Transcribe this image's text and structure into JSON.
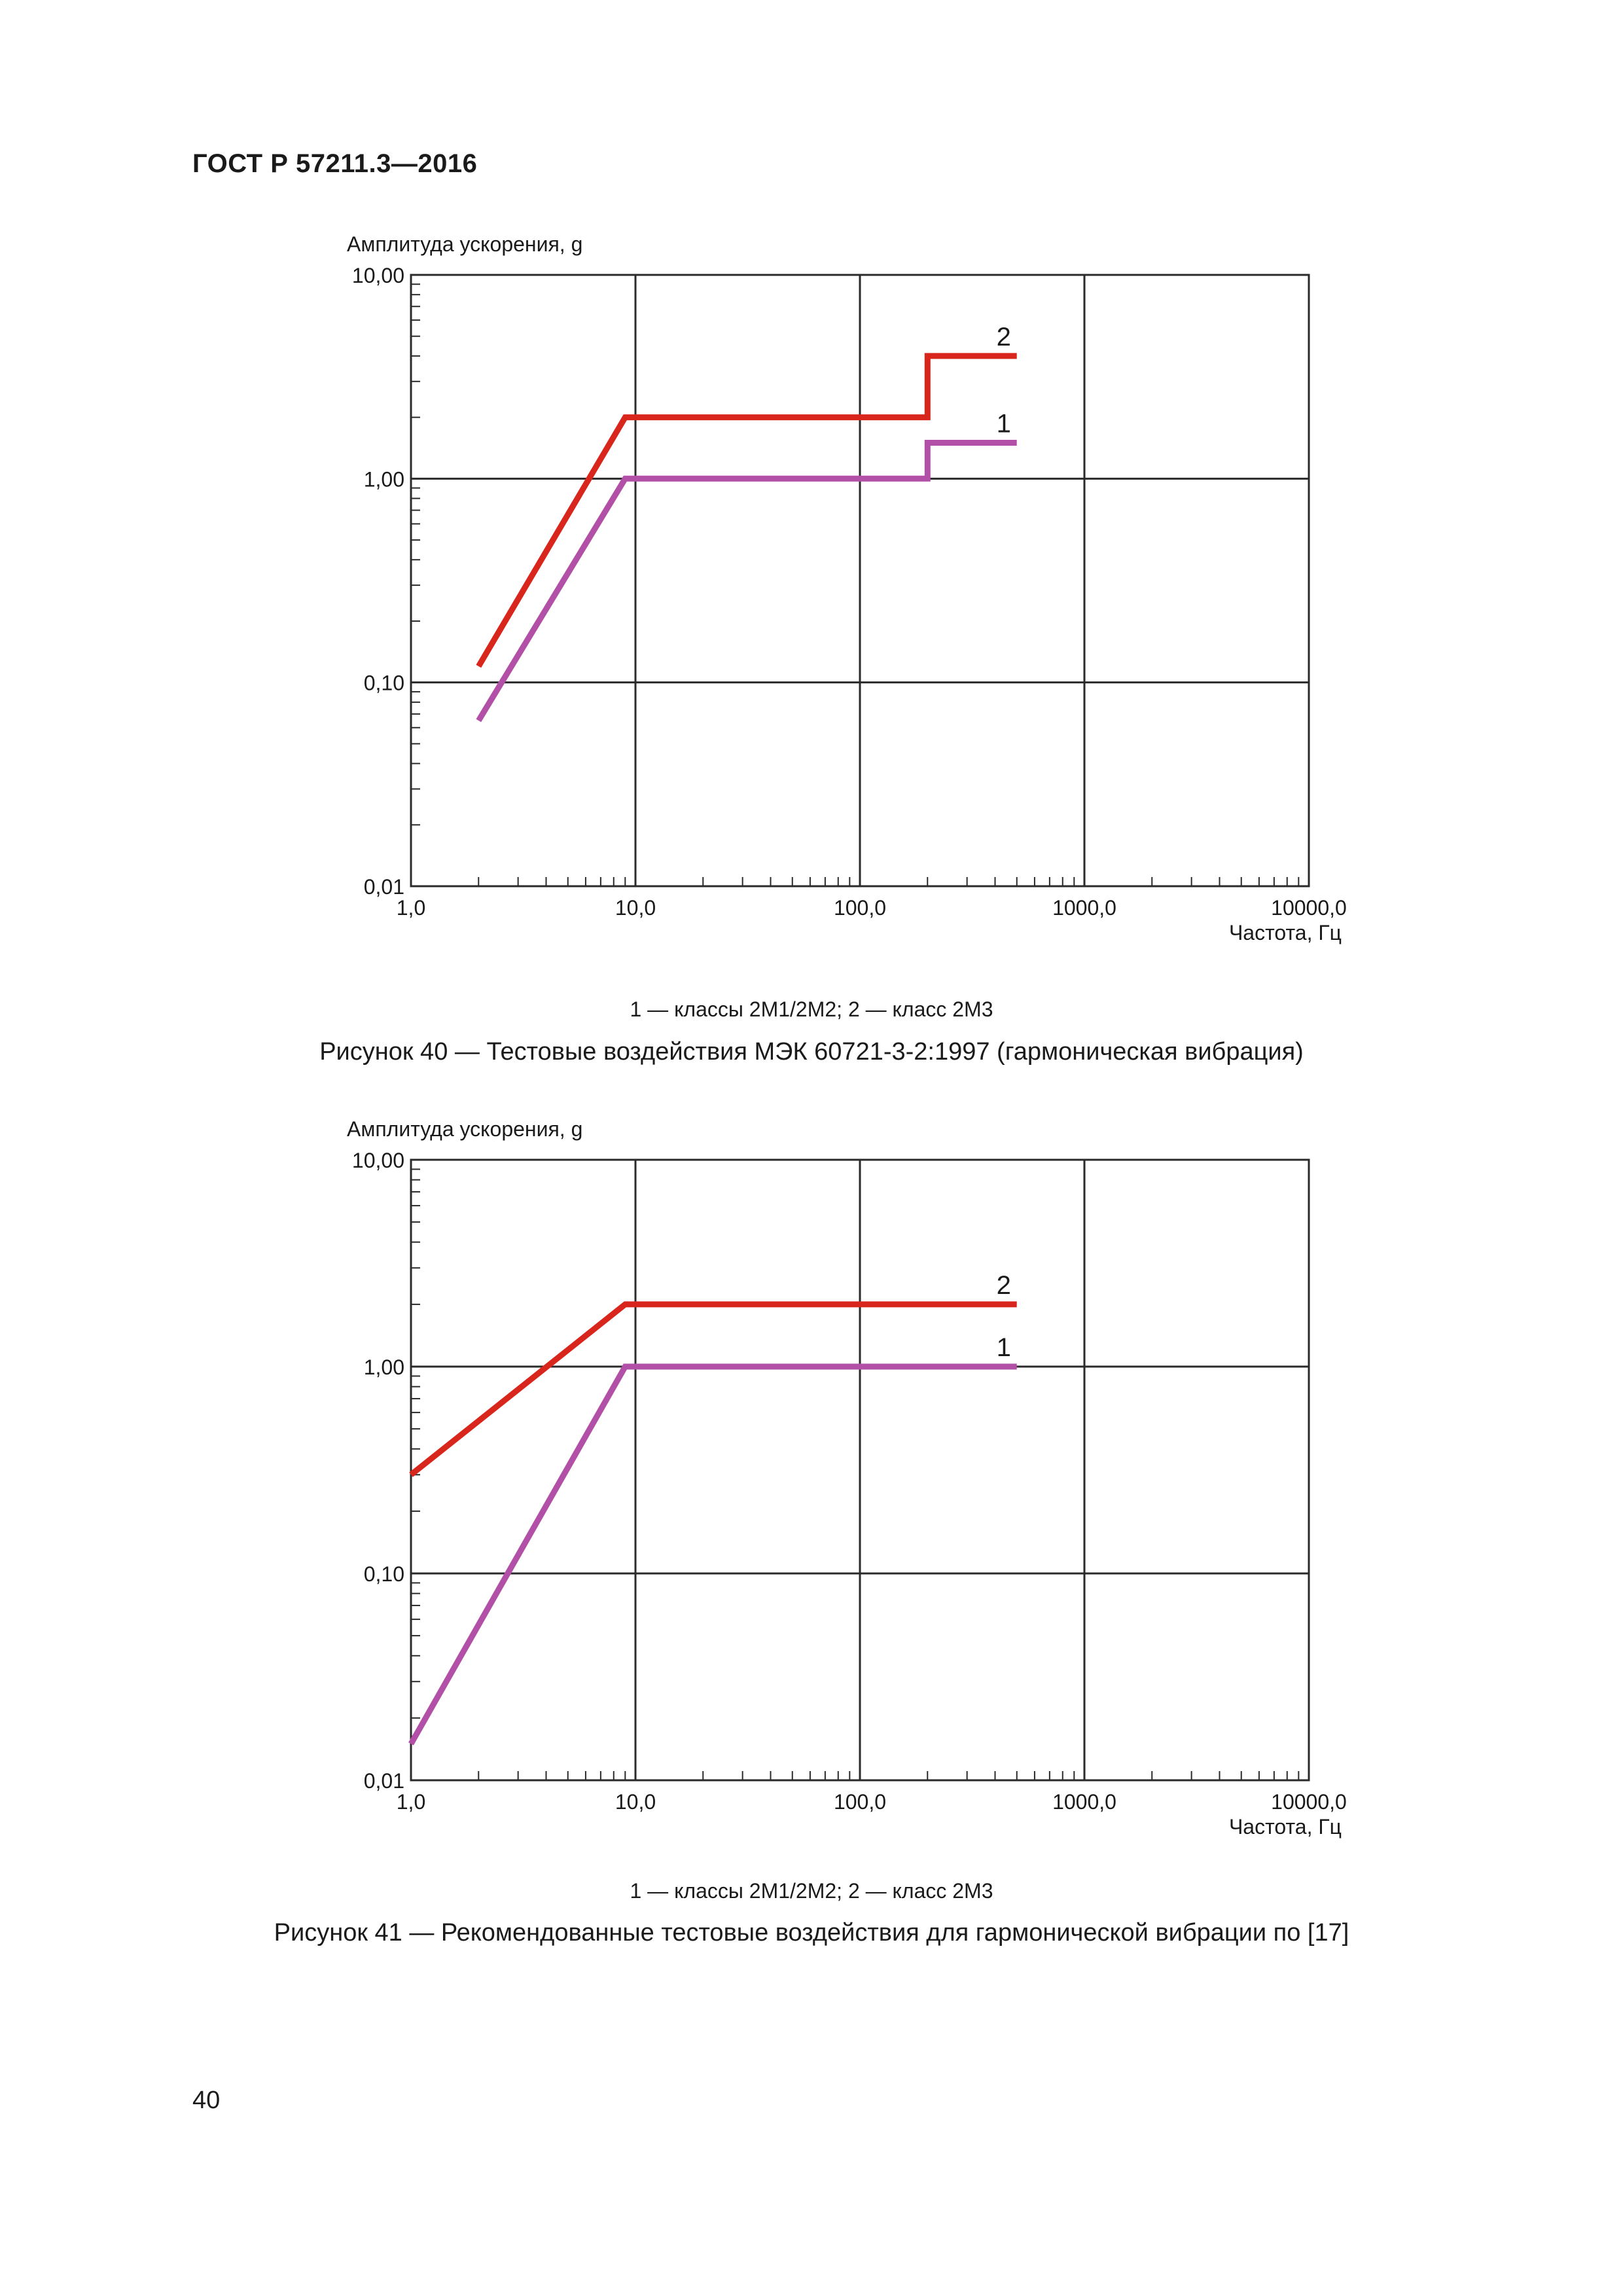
{
  "header": {
    "doc_id": "ГОСТ Р 57211.3—2016"
  },
  "page_number": "40",
  "figures": [
    {
      "legend": "1 — классы 2М1/2М2; 2 — класс 2М3",
      "caption": "Рисунок 40 — Тестовые воздействия МЭК 60721-3-2:1997 (гармоническая вибрация)"
    },
    {
      "legend": "1 — классы 2М1/2М2; 2 — класс 2М3",
      "caption": "Рисунок 41 — Рекомендованные тестовые воздействия для гармонической вибрации по [17]"
    }
  ],
  "colors": {
    "series_1": "#b24fa6",
    "series_2": "#d9261c",
    "grid": "#2a2a2a"
  },
  "chart_data": [
    {
      "type": "line",
      "ylabel": "Амплитуда ускорения, g",
      "xlabel": "Частота, Гц",
      "x_scale": "log",
      "y_scale": "log",
      "xlim": [
        1,
        10000
      ],
      "ylim": [
        0.01,
        10
      ],
      "x_ticks": [
        "1,0",
        "10,0",
        "100,0",
        "1000,0",
        "10000,0"
      ],
      "y_ticks": [
        "0,01",
        "0,10",
        "1,00",
        "10,00"
      ],
      "grid": true,
      "series": [
        {
          "name": "1",
          "color": "#b24fa6",
          "x": [
            2,
            9,
            200,
            200,
            500
          ],
          "y": [
            0.065,
            1.0,
            1.0,
            1.5,
            1.5
          ]
        },
        {
          "name": "2",
          "color": "#d9261c",
          "x": [
            2,
            9,
            200,
            200,
            500
          ],
          "y": [
            0.12,
            2.0,
            2.0,
            4.0,
            4.0
          ]
        }
      ]
    },
    {
      "type": "line",
      "ylabel": "Амплитуда ускорения, g",
      "xlabel": "Частота, Гц",
      "x_scale": "log",
      "y_scale": "log",
      "xlim": [
        1,
        10000
      ],
      "ylim": [
        0.01,
        10
      ],
      "x_ticks": [
        "1,0",
        "10,0",
        "100,0",
        "1000,0",
        "10000,0"
      ],
      "y_ticks": [
        "0,01",
        "0,10",
        "1,00",
        "10,00"
      ],
      "grid": true,
      "series": [
        {
          "name": "1",
          "color": "#b24fa6",
          "x": [
            1,
            9,
            500
          ],
          "y": [
            0.015,
            1.0,
            1.0
          ]
        },
        {
          "name": "2",
          "color": "#d9261c",
          "x": [
            1,
            9,
            500
          ],
          "y": [
            0.3,
            2.0,
            2.0
          ]
        }
      ]
    }
  ]
}
